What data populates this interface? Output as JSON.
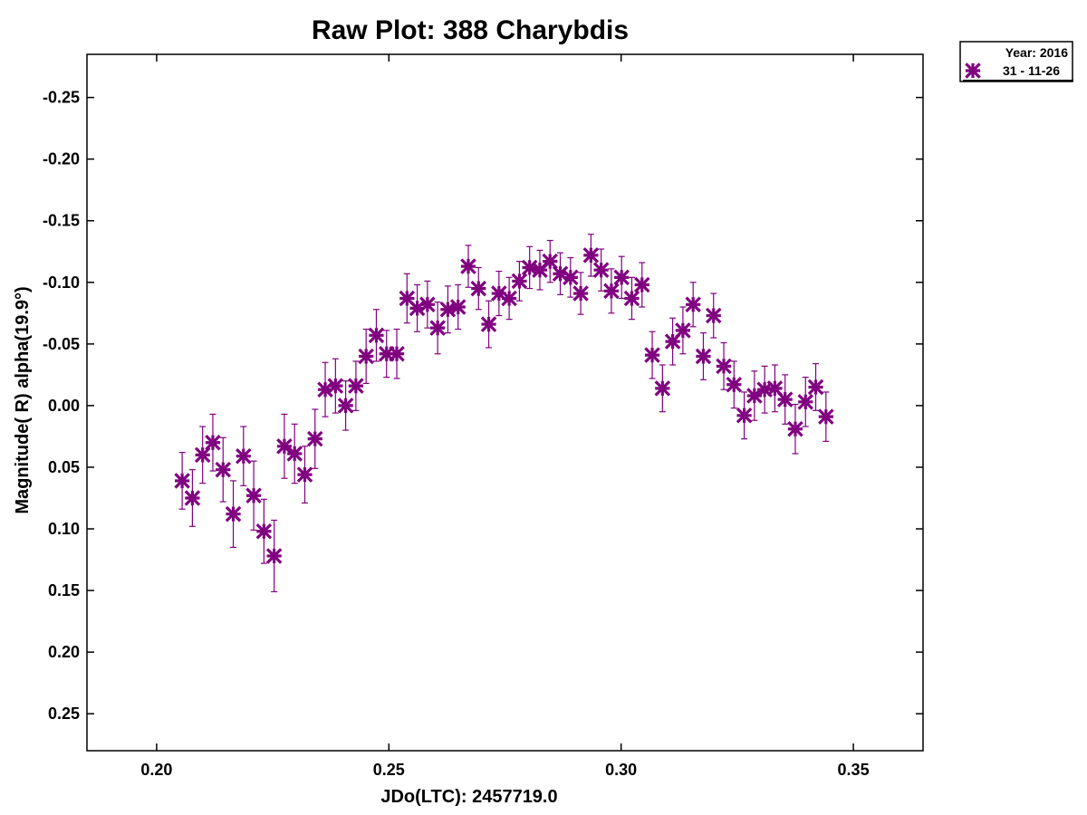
{
  "chart_data": {
    "type": "scatter",
    "title": "Raw Plot: 388 Charybdis",
    "xlabel": "JDo(LTC): 2457719.0",
    "ylabel": "Magnitude( R) alpha(19.9°)",
    "xlim": [
      0.185,
      0.365
    ],
    "ylim": [
      -0.285,
      0.28
    ],
    "y_inverted": true,
    "x_ticks": [
      0.2,
      0.25,
      0.3,
      0.35
    ],
    "x_tick_labels": [
      "0.20",
      "0.25",
      "0.30",
      "0.35"
    ],
    "y_ticks": [
      -0.25,
      -0.2,
      -0.15,
      -0.1,
      -0.05,
      0.0,
      0.05,
      0.1,
      0.15,
      0.2,
      0.25
    ],
    "y_tick_labels": [
      "-0.25",
      "-0.20",
      "-0.15",
      "-0.10",
      "-0.05",
      "0.00",
      "0.05",
      "0.10",
      "0.15",
      "0.20",
      "0.25"
    ],
    "grid": false,
    "legend": {
      "placement": "outside-top-right",
      "title": "Year: 2016",
      "entries": [
        "31 - 11-26"
      ]
    },
    "series": [
      {
        "name": "31 - 11-26",
        "color": "#800080",
        "marker": "asterisk",
        "points": [
          {
            "x": 0.2055,
            "y": 0.061,
            "err": 0.023
          },
          {
            "x": 0.2077,
            "y": 0.075,
            "err": 0.023
          },
          {
            "x": 0.2099,
            "y": 0.04,
            "err": 0.023
          },
          {
            "x": 0.2121,
            "y": 0.03,
            "err": 0.023
          },
          {
            "x": 0.2143,
            "y": 0.052,
            "err": 0.026
          },
          {
            "x": 0.2165,
            "y": 0.088,
            "err": 0.027
          },
          {
            "x": 0.2187,
            "y": 0.041,
            "err": 0.024
          },
          {
            "x": 0.2209,
            "y": 0.073,
            "err": 0.028
          },
          {
            "x": 0.2231,
            "y": 0.102,
            "err": 0.026
          },
          {
            "x": 0.2253,
            "y": 0.122,
            "err": 0.029
          },
          {
            "x": 0.2275,
            "y": 0.033,
            "err": 0.026
          },
          {
            "x": 0.2297,
            "y": 0.039,
            "err": 0.024
          },
          {
            "x": 0.2319,
            "y": 0.056,
            "err": 0.023
          },
          {
            "x": 0.2341,
            "y": 0.027,
            "err": 0.024
          },
          {
            "x": 0.2363,
            "y": -0.013,
            "err": 0.022
          },
          {
            "x": 0.2385,
            "y": -0.016,
            "err": 0.022
          },
          {
            "x": 0.2407,
            "y": 0.0,
            "err": 0.02
          },
          {
            "x": 0.2429,
            "y": -0.016,
            "err": 0.02
          },
          {
            "x": 0.2451,
            "y": -0.04,
            "err": 0.022
          },
          {
            "x": 0.2473,
            "y": -0.057,
            "err": 0.021
          },
          {
            "x": 0.2495,
            "y": -0.042,
            "err": 0.019
          },
          {
            "x": 0.2517,
            "y": -0.042,
            "err": 0.02
          },
          {
            "x": 0.2539,
            "y": -0.087,
            "err": 0.02
          },
          {
            "x": 0.2561,
            "y": -0.079,
            "err": 0.019
          },
          {
            "x": 0.2583,
            "y": -0.082,
            "err": 0.019
          },
          {
            "x": 0.2605,
            "y": -0.063,
            "err": 0.021
          },
          {
            "x": 0.2627,
            "y": -0.078,
            "err": 0.019
          },
          {
            "x": 0.2649,
            "y": -0.08,
            "err": 0.018
          },
          {
            "x": 0.2671,
            "y": -0.113,
            "err": 0.017
          },
          {
            "x": 0.2693,
            "y": -0.095,
            "err": 0.017
          },
          {
            "x": 0.2715,
            "y": -0.066,
            "err": 0.019
          },
          {
            "x": 0.2737,
            "y": -0.091,
            "err": 0.018
          },
          {
            "x": 0.2759,
            "y": -0.087,
            "err": 0.017
          },
          {
            "x": 0.2781,
            "y": -0.101,
            "err": 0.016
          },
          {
            "x": 0.2803,
            "y": -0.112,
            "err": 0.017
          },
          {
            "x": 0.2825,
            "y": -0.11,
            "err": 0.016
          },
          {
            "x": 0.2847,
            "y": -0.117,
            "err": 0.017
          },
          {
            "x": 0.2869,
            "y": -0.107,
            "err": 0.017
          },
          {
            "x": 0.2891,
            "y": -0.104,
            "err": 0.016
          },
          {
            "x": 0.2913,
            "y": -0.091,
            "err": 0.017
          },
          {
            "x": 0.2935,
            "y": -0.122,
            "err": 0.017
          },
          {
            "x": 0.2957,
            "y": -0.11,
            "err": 0.017
          },
          {
            "x": 0.2979,
            "y": -0.093,
            "err": 0.018
          },
          {
            "x": 0.3001,
            "y": -0.104,
            "err": 0.017
          },
          {
            "x": 0.3023,
            "y": -0.087,
            "err": 0.017
          },
          {
            "x": 0.3045,
            "y": -0.098,
            "err": 0.018
          },
          {
            "x": 0.3067,
            "y": -0.041,
            "err": 0.019
          },
          {
            "x": 0.3089,
            "y": -0.014,
            "err": 0.019
          },
          {
            "x": 0.3111,
            "y": -0.052,
            "err": 0.019
          },
          {
            "x": 0.3133,
            "y": -0.061,
            "err": 0.019
          },
          {
            "x": 0.3155,
            "y": -0.082,
            "err": 0.018
          },
          {
            "x": 0.3177,
            "y": -0.04,
            "err": 0.019
          },
          {
            "x": 0.3199,
            "y": -0.073,
            "err": 0.018
          },
          {
            "x": 0.3221,
            "y": -0.032,
            "err": 0.019
          },
          {
            "x": 0.3243,
            "y": -0.017,
            "err": 0.019
          },
          {
            "x": 0.3265,
            "y": 0.008,
            "err": 0.019
          },
          {
            "x": 0.3287,
            "y": -0.008,
            "err": 0.02
          },
          {
            "x": 0.3309,
            "y": -0.013,
            "err": 0.019
          },
          {
            "x": 0.3331,
            "y": -0.014,
            "err": 0.019
          },
          {
            "x": 0.3353,
            "y": -0.005,
            "err": 0.02
          },
          {
            "x": 0.3375,
            "y": 0.019,
            "err": 0.02
          },
          {
            "x": 0.3397,
            "y": -0.003,
            "err": 0.02
          },
          {
            "x": 0.3419,
            "y": -0.015,
            "err": 0.019
          },
          {
            "x": 0.3441,
            "y": 0.009,
            "err": 0.02
          }
        ]
      }
    ]
  }
}
